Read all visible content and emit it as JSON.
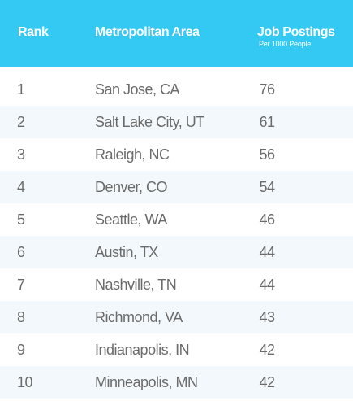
{
  "header": {
    "rank": "Rank",
    "area": "Metropolitan Area",
    "jobs": "Job Postings",
    "jobs_sub": "Per 1000 People"
  },
  "colors": {
    "header_bg": "#33c9f3",
    "alt_row_bg": "#f2f8fb",
    "text": "#6b6b6b"
  },
  "rows": [
    {
      "rank": "1",
      "area": "San Jose, CA",
      "postings": "76"
    },
    {
      "rank": "2",
      "area": "Salt Lake City, UT",
      "postings": "61"
    },
    {
      "rank": "3",
      "area": "Raleigh, NC",
      "postings": "56"
    },
    {
      "rank": "4",
      "area": "Denver, CO",
      "postings": "54"
    },
    {
      "rank": "5",
      "area": "Seattle, WA",
      "postings": "46"
    },
    {
      "rank": "6",
      "area": "Austin, TX",
      "postings": "44"
    },
    {
      "rank": "7",
      "area": "Nashville, TN",
      "postings": "44"
    },
    {
      "rank": "8",
      "area": "Richmond, VA",
      "postings": "43"
    },
    {
      "rank": "9",
      "area": "Indianapolis, IN",
      "postings": "42"
    },
    {
      "rank": "10",
      "area": "Minneapolis, MN",
      "postings": "42"
    }
  ]
}
